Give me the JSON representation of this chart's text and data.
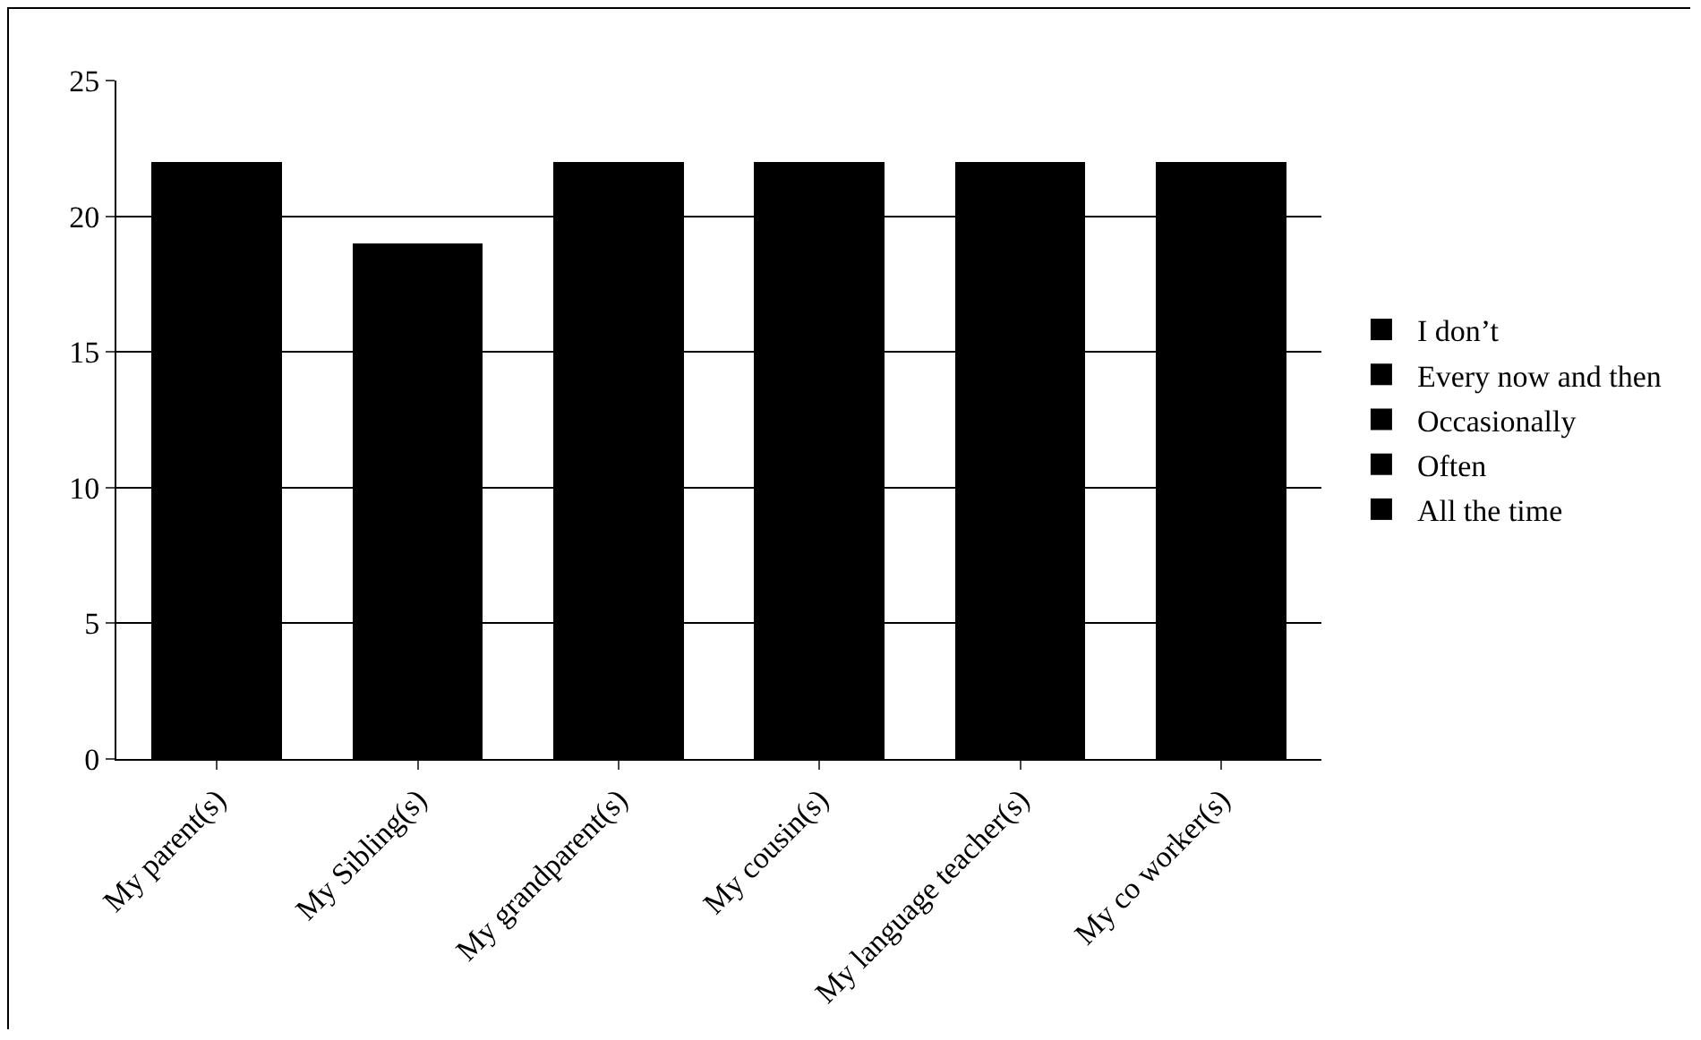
{
  "chart_data": {
    "type": "bar",
    "stacked": true,
    "categories": [
      "My parent(s)",
      "My Sibling(s)",
      "My grandparent(s)",
      "My cousin(s)",
      "My language teacher(s)",
      "My co worker(s)"
    ],
    "series": [
      {
        "name": "I don’t",
        "color": "#000000",
        "values": [
          22,
          19,
          22,
          22,
          22,
          22
        ]
      },
      {
        "name": "Every now and then",
        "color": "#000000",
        "values": [
          0,
          0,
          0,
          0,
          0,
          0
        ]
      },
      {
        "name": "Occasionally",
        "color": "#000000",
        "values": [
          0,
          0,
          0,
          0,
          0,
          0
        ]
      },
      {
        "name": "Often",
        "color": "#000000",
        "values": [
          0,
          0,
          0,
          0,
          0,
          0
        ]
      },
      {
        "name": "All the time",
        "color": "#000000",
        "values": [
          0,
          0,
          0,
          0,
          0,
          0
        ]
      }
    ],
    "ylim": [
      0,
      25
    ],
    "yticks": [
      0,
      5,
      10,
      15,
      20,
      25
    ],
    "grid": "y",
    "legend": "right"
  }
}
